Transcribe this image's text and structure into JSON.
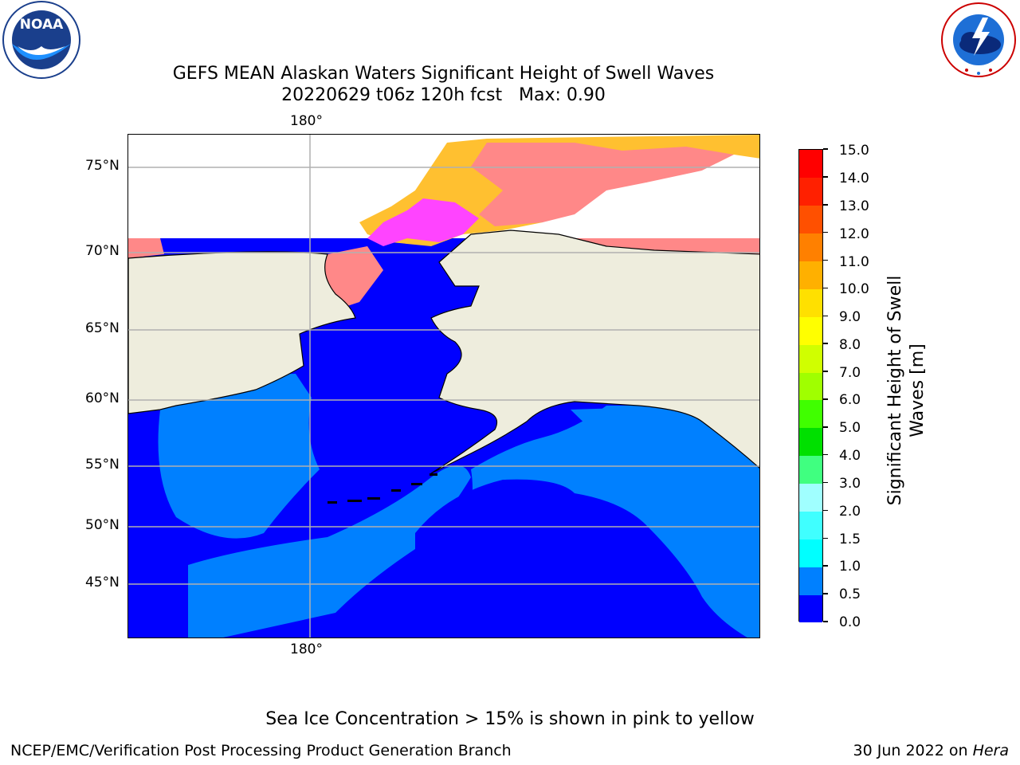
{
  "header": {
    "title_line1": "GEFS MEAN Alaskan Waters Significant Height of Swell Waves",
    "title_line2": "20220629 t06z 120h fcst   Max: 0.90"
  },
  "logos": {
    "noaa_text": "NOAA",
    "noaa_ring_text": "NATIONAL OCEANIC AND ATMOSPHERIC ADMINISTRATION · U.S. DEPARTMENT OF COMMERCE",
    "nws_ring_text": "NATIONAL WEATHER SERVICE"
  },
  "map": {
    "lon_label_top": "180°",
    "lon_label_bottom": "180°",
    "lat_labels": [
      "75°N",
      "70°N",
      "65°N",
      "60°N",
      "55°N",
      "50°N",
      "45°N"
    ],
    "colors": {
      "land": "#eeeddd",
      "ocean_low": "#0000ff",
      "ocean_mid": "#0080ff",
      "ice_pink": "#ff44ff",
      "ice_salmon": "#ff8888",
      "ice_yellow": "#ffc030",
      "grid": "#b0b0b0"
    }
  },
  "colorbar": {
    "label_line1": "Significant Height of Swell",
    "label_line2": "Waves [m]",
    "ticks": [
      "15.0",
      "14.0",
      "13.0",
      "12.0",
      "11.0",
      "10.0",
      "9.0",
      "8.0",
      "7.0",
      "6.0",
      "5.0",
      "4.0",
      "3.0",
      "2.0",
      "1.5",
      "1.0",
      "0.5",
      "0.0"
    ],
    "colors": [
      "#0000ff",
      "#0080ff",
      "#00ffff",
      "#40ffff",
      "#80ffff",
      "#a0ffff",
      "#40ff80",
      "#00e000",
      "#40ff00",
      "#80ff00",
      "#c0ff00",
      "#e0ff00",
      "#ffff00",
      "#ffe000",
      "#ffc000",
      "#ffa000",
      "#ff8000",
      "#ff6000",
      "#ff4000",
      "#ff2000",
      "#ff0000"
    ]
  },
  "footer": {
    "note": "Sea Ice Concentration > 15% is shown in pink to yellow",
    "left": "NCEP/EMC/Verification Post Processing Product Generation Branch",
    "right_prefix": "30 Jun 2022 on ",
    "right_host": "Hera"
  }
}
